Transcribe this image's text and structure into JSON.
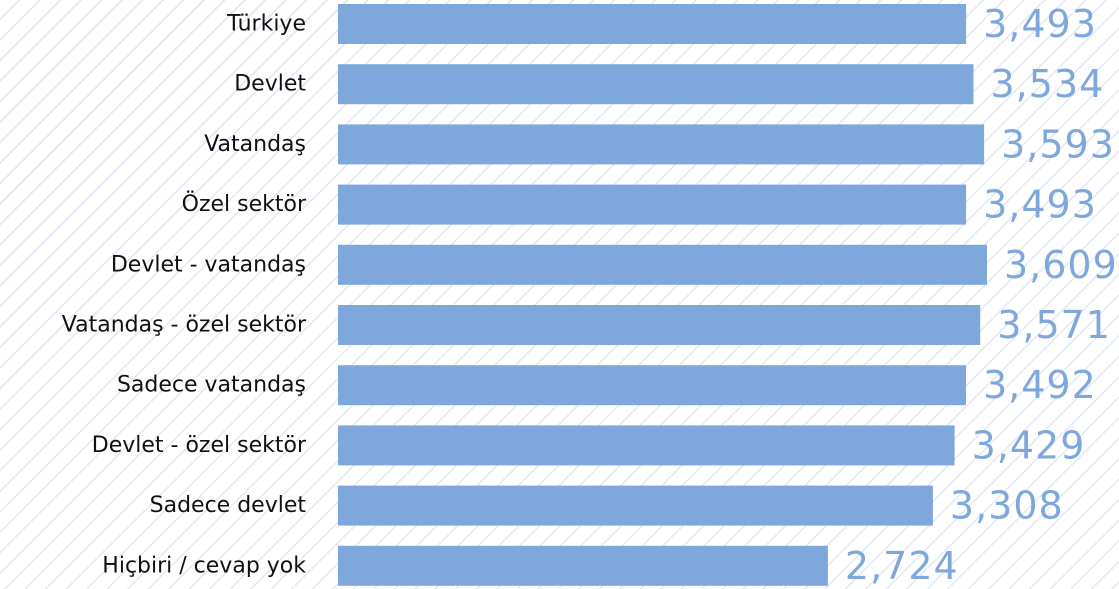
{
  "chart_data": {
    "type": "bar",
    "orientation": "horizontal",
    "categories": [
      "Türkiye",
      "Devlet",
      "Vatandaş",
      "Özel sektör",
      "Devlet - vatandaş",
      "Vatandaş - özel sektör",
      "Sadece vatandaş",
      "Devlet - özel sektör",
      "Sadece devlet",
      "Hiçbiri / cevap yok"
    ],
    "values": [
      3.493,
      3.534,
      3.593,
      3.493,
      3.609,
      3.571,
      3.492,
      3.429,
      3.308,
      2.724
    ],
    "value_labels": [
      "3,493",
      "3,534",
      "3,593",
      "3,493",
      "3,609",
      "3,571",
      "3,492",
      "3,429",
      "3,308",
      "2,724"
    ],
    "title": "",
    "xlabel": "",
    "ylabel": "",
    "xlim": [
      0,
      3.609
    ],
    "grid": false,
    "legend": "none",
    "colors": {
      "bar": "#7ea8dc",
      "value_label": "#7ea8dc",
      "category_label": "#111111"
    }
  }
}
